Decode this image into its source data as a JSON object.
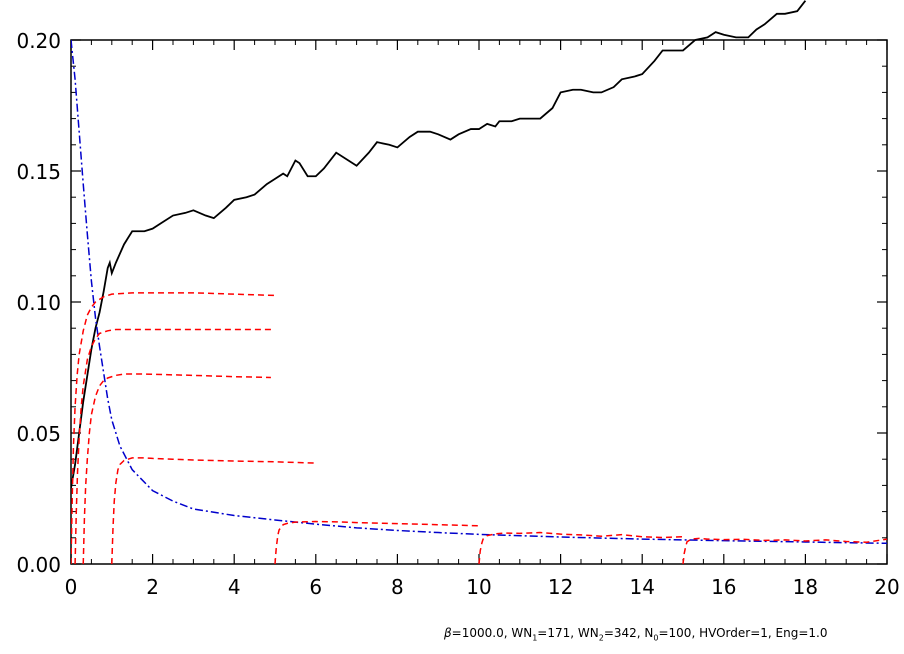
{
  "footer": {
    "beta": "β",
    "beta_val": "=1000.0, WN",
    "s1": "1",
    "wn1": "=171, WN",
    "s2": "2",
    "wn2": "=342, N",
    "s3": "0",
    "rest": "=100, HVOrder=1, Eng=1.0"
  },
  "chart_data": {
    "type": "line",
    "xlim": [
      0,
      20
    ],
    "ylim": [
      0,
      0.2
    ],
    "x_ticks": [
      0,
      2,
      4,
      6,
      8,
      10,
      12,
      14,
      16,
      18,
      20
    ],
    "x_tick_labels": [
      "0",
      "2",
      "4",
      "6",
      "8",
      "10",
      "12",
      "14",
      "16",
      "18",
      "20"
    ],
    "y_ticks": [
      0,
      0.05,
      0.1,
      0.15,
      0.2
    ],
    "y_tick_labels": [
      "0.00",
      "0.05",
      "0.10",
      "0.15",
      "0.20"
    ],
    "grid": false,
    "series": [
      {
        "color": "#000000",
        "style": "solid",
        "x": [
          0,
          0.1,
          0.2,
          0.3,
          0.4,
          0.5,
          0.6,
          0.7,
          0.8,
          0.9,
          0.95,
          1.0,
          1.1,
          1.3,
          1.5,
          1.8,
          2.0,
          2.2,
          2.5,
          2.8,
          3.0,
          3.3,
          3.5,
          3.8,
          4.0,
          4.3,
          4.5,
          4.8,
          5.0,
          5.2,
          5.3,
          5.5,
          5.6,
          5.8,
          6.0,
          6.2,
          6.5,
          6.8,
          7.0,
          7.3,
          7.5,
          7.8,
          8.0,
          8.3,
          8.5,
          8.8,
          9.0,
          9.3,
          9.5,
          9.8,
          10.0,
          10.2,
          10.4,
          10.5,
          10.8,
          11.0,
          11.3,
          11.5,
          11.8,
          12.0,
          12.3,
          12.5,
          12.8,
          13.0,
          13.3,
          13.5,
          13.8,
          14.0,
          14.3,
          14.5,
          14.8,
          15.0,
          15.3,
          15.6,
          15.8,
          16.0,
          16.3,
          16.6,
          16.8,
          17.0,
          17.3,
          17.5,
          17.8,
          18.0
        ],
        "y": [
          0.029,
          0.038,
          0.05,
          0.062,
          0.072,
          0.082,
          0.09,
          0.096,
          0.104,
          0.113,
          0.115,
          0.111,
          0.115,
          0.122,
          0.127,
          0.127,
          0.128,
          0.13,
          0.133,
          0.134,
          0.135,
          0.133,
          0.132,
          0.136,
          0.139,
          0.14,
          0.141,
          0.145,
          0.147,
          0.149,
          0.148,
          0.154,
          0.153,
          0.148,
          0.148,
          0.151,
          0.157,
          0.154,
          0.152,
          0.157,
          0.161,
          0.16,
          0.159,
          0.163,
          0.165,
          0.165,
          0.164,
          0.162,
          0.164,
          0.166,
          0.166,
          0.168,
          0.167,
          0.169,
          0.169,
          0.17,
          0.17,
          0.17,
          0.174,
          0.18,
          0.181,
          0.181,
          0.18,
          0.18,
          0.182,
          0.185,
          0.186,
          0.187,
          0.192,
          0.196,
          0.196,
          0.196,
          0.2,
          0.201,
          0.203,
          0.202,
          0.201,
          0.201,
          0.204,
          0.206,
          0.21,
          0.21,
          0.211,
          0.215
        ]
      },
      {
        "color": "#0000cc",
        "style": "dashdot",
        "x": [
          0.0,
          0.1,
          0.2,
          0.3,
          0.4,
          0.5,
          0.6,
          0.7,
          0.8,
          0.9,
          1.0,
          1.2,
          1.5,
          2.0,
          2.5,
          3.0,
          4.0,
          5.0,
          6.0,
          7.0,
          8.0,
          9.0,
          10.0,
          12.0,
          14.0,
          16.0,
          18.0,
          20.0
        ],
        "y": [
          0.2,
          0.185,
          0.165,
          0.145,
          0.126,
          0.108,
          0.094,
          0.083,
          0.073,
          0.063,
          0.055,
          0.045,
          0.036,
          0.028,
          0.024,
          0.021,
          0.0185,
          0.0168,
          0.0152,
          0.0138,
          0.0128,
          0.012,
          0.0113,
          0.0103,
          0.0095,
          0.0089,
          0.0084,
          0.0079
        ]
      },
      {
        "color": "#ff0000",
        "style": "dashed",
        "x": [
          0.0,
          0.03,
          0.06,
          0.1,
          0.15,
          0.2,
          0.3,
          0.4,
          0.5,
          0.6,
          0.8,
          1.0,
          1.5,
          2.0,
          3.0,
          4.0,
          5.0
        ],
        "y": [
          0.0,
          0.025,
          0.045,
          0.06,
          0.072,
          0.08,
          0.089,
          0.095,
          0.098,
          0.1,
          0.102,
          0.103,
          0.1035,
          0.1035,
          0.1035,
          0.103,
          0.1025
        ]
      },
      {
        "color": "#ff0000",
        "style": "dashed",
        "x": [
          0.1,
          0.13,
          0.16,
          0.2,
          0.25,
          0.3,
          0.4,
          0.5,
          0.6,
          0.7,
          0.9,
          1.1,
          1.6,
          2.0,
          3.0,
          4.0,
          4.9
        ],
        "y": [
          0.0,
          0.02,
          0.035,
          0.048,
          0.06,
          0.068,
          0.078,
          0.083,
          0.086,
          0.088,
          0.089,
          0.0895,
          0.0895,
          0.0895,
          0.0895,
          0.0895,
          0.0895
        ]
      },
      {
        "color": "#ff0000",
        "style": "dashed",
        "x": [
          0.3,
          0.33,
          0.36,
          0.4,
          0.45,
          0.5,
          0.6,
          0.7,
          0.8,
          0.9,
          1.1,
          1.3,
          1.8,
          2.5,
          3.0,
          4.0,
          4.9
        ],
        "y": [
          0.0,
          0.018,
          0.03,
          0.04,
          0.05,
          0.057,
          0.064,
          0.068,
          0.07,
          0.071,
          0.072,
          0.0725,
          0.0725,
          0.0722,
          0.072,
          0.0715,
          0.0712
        ]
      },
      {
        "color": "#ff0000",
        "style": "dashed",
        "x": [
          1.0,
          1.03,
          1.06,
          1.1,
          1.15,
          1.2,
          1.3,
          1.4,
          1.5,
          1.6,
          1.8,
          2.0,
          2.5,
          3.0,
          4.0,
          5.0,
          6.0
        ],
        "y": [
          0.0,
          0.014,
          0.024,
          0.031,
          0.036,
          0.038,
          0.0395,
          0.04,
          0.0405,
          0.0405,
          0.0405,
          0.0403,
          0.04,
          0.0397,
          0.0393,
          0.039,
          0.0385
        ]
      },
      {
        "color": "#ff0000",
        "style": "dashed",
        "x": [
          5.0,
          5.03,
          5.07,
          5.1,
          5.2,
          5.3,
          5.5,
          6.0,
          6.5,
          7.0,
          8.0,
          9.0,
          10.0
        ],
        "y": [
          0.0,
          0.006,
          0.011,
          0.013,
          0.015,
          0.0155,
          0.016,
          0.0162,
          0.0161,
          0.0158,
          0.0154,
          0.015,
          0.0146
        ]
      },
      {
        "color": "#ff0000",
        "style": "dashed",
        "x": [
          10.0,
          10.03,
          10.07,
          10.1,
          10.2,
          10.4,
          10.6,
          11.0,
          11.5,
          12.0,
          12.5,
          13.0,
          13.5,
          14.0,
          14.5,
          15.0
        ],
        "y": [
          0.0,
          0.005,
          0.008,
          0.0095,
          0.0108,
          0.0115,
          0.0118,
          0.0117,
          0.012,
          0.0114,
          0.0111,
          0.0106,
          0.0112,
          0.0104,
          0.0101,
          0.0104
        ]
      },
      {
        "color": "#ff0000",
        "style": "dashed",
        "x": [
          15.0,
          15.03,
          15.07,
          15.1,
          15.2,
          15.4,
          15.6,
          16.0,
          16.5,
          17.0,
          17.5,
          18.0,
          18.5,
          19.0,
          19.5,
          20.0
        ],
        "y": [
          0.0,
          0.004,
          0.007,
          0.0085,
          0.0095,
          0.0098,
          0.0095,
          0.0093,
          0.0094,
          0.009,
          0.0092,
          0.0088,
          0.0092,
          0.0086,
          0.0083,
          0.0095
        ]
      }
    ]
  }
}
